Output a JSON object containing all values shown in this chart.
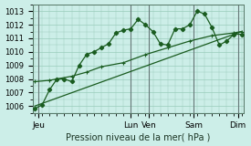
{
  "xlabel": "Pression niveau de la mer( hPa )",
  "bg_color": "#cceee8",
  "grid_color": "#99ccbb",
  "line_color": "#1a5c20",
  "vline_color": "#667777",
  "ylim": [
    1005.5,
    1013.5
  ],
  "xlim": [
    -0.3,
    28.3
  ],
  "day_labels": [
    "Jeu",
    "",
    "",
    "",
    "Lun",
    "Ven",
    "",
    "",
    "Sam",
    "",
    "",
    "Dim"
  ],
  "xtick_labels": [
    "Jeu",
    "Lun",
    "Ven",
    "Sam",
    "Dim"
  ],
  "xtick_positions": [
    0.5,
    13.0,
    15.5,
    21.5,
    27.5
  ],
  "yticks": [
    1006,
    1007,
    1008,
    1009,
    1010,
    1011,
    1012,
    1013
  ],
  "vlines": [
    0.5,
    13.0,
    15.5,
    21.5,
    27.5
  ],
  "main_x": [
    0,
    1,
    2,
    3,
    4,
    5,
    6,
    7,
    8,
    9,
    10,
    11,
    12,
    13,
    14,
    15,
    16,
    17,
    18,
    19,
    20,
    21,
    22,
    23,
    24,
    25,
    26,
    27,
    28
  ],
  "main_y": [
    1005.8,
    1006.1,
    1007.2,
    1008.0,
    1008.0,
    1007.8,
    1009.0,
    1009.8,
    1010.0,
    1010.3,
    1010.6,
    1011.4,
    1011.6,
    1011.7,
    1012.4,
    1012.0,
    1011.5,
    1010.6,
    1010.5,
    1011.7,
    1011.7,
    1012.0,
    1013.0,
    1012.8,
    1011.8,
    1010.5,
    1010.8,
    1011.3,
    1011.3
  ],
  "trend_x": [
    0,
    28
  ],
  "trend_y": [
    1006.0,
    1011.5
  ],
  "smooth_x": [
    0,
    2,
    5,
    7,
    9,
    12,
    15,
    18,
    21,
    24,
    27,
    28
  ],
  "smooth_y": [
    1007.8,
    1007.9,
    1008.2,
    1008.5,
    1008.9,
    1009.2,
    1009.8,
    1010.3,
    1010.8,
    1011.2,
    1011.4,
    1011.5
  ]
}
